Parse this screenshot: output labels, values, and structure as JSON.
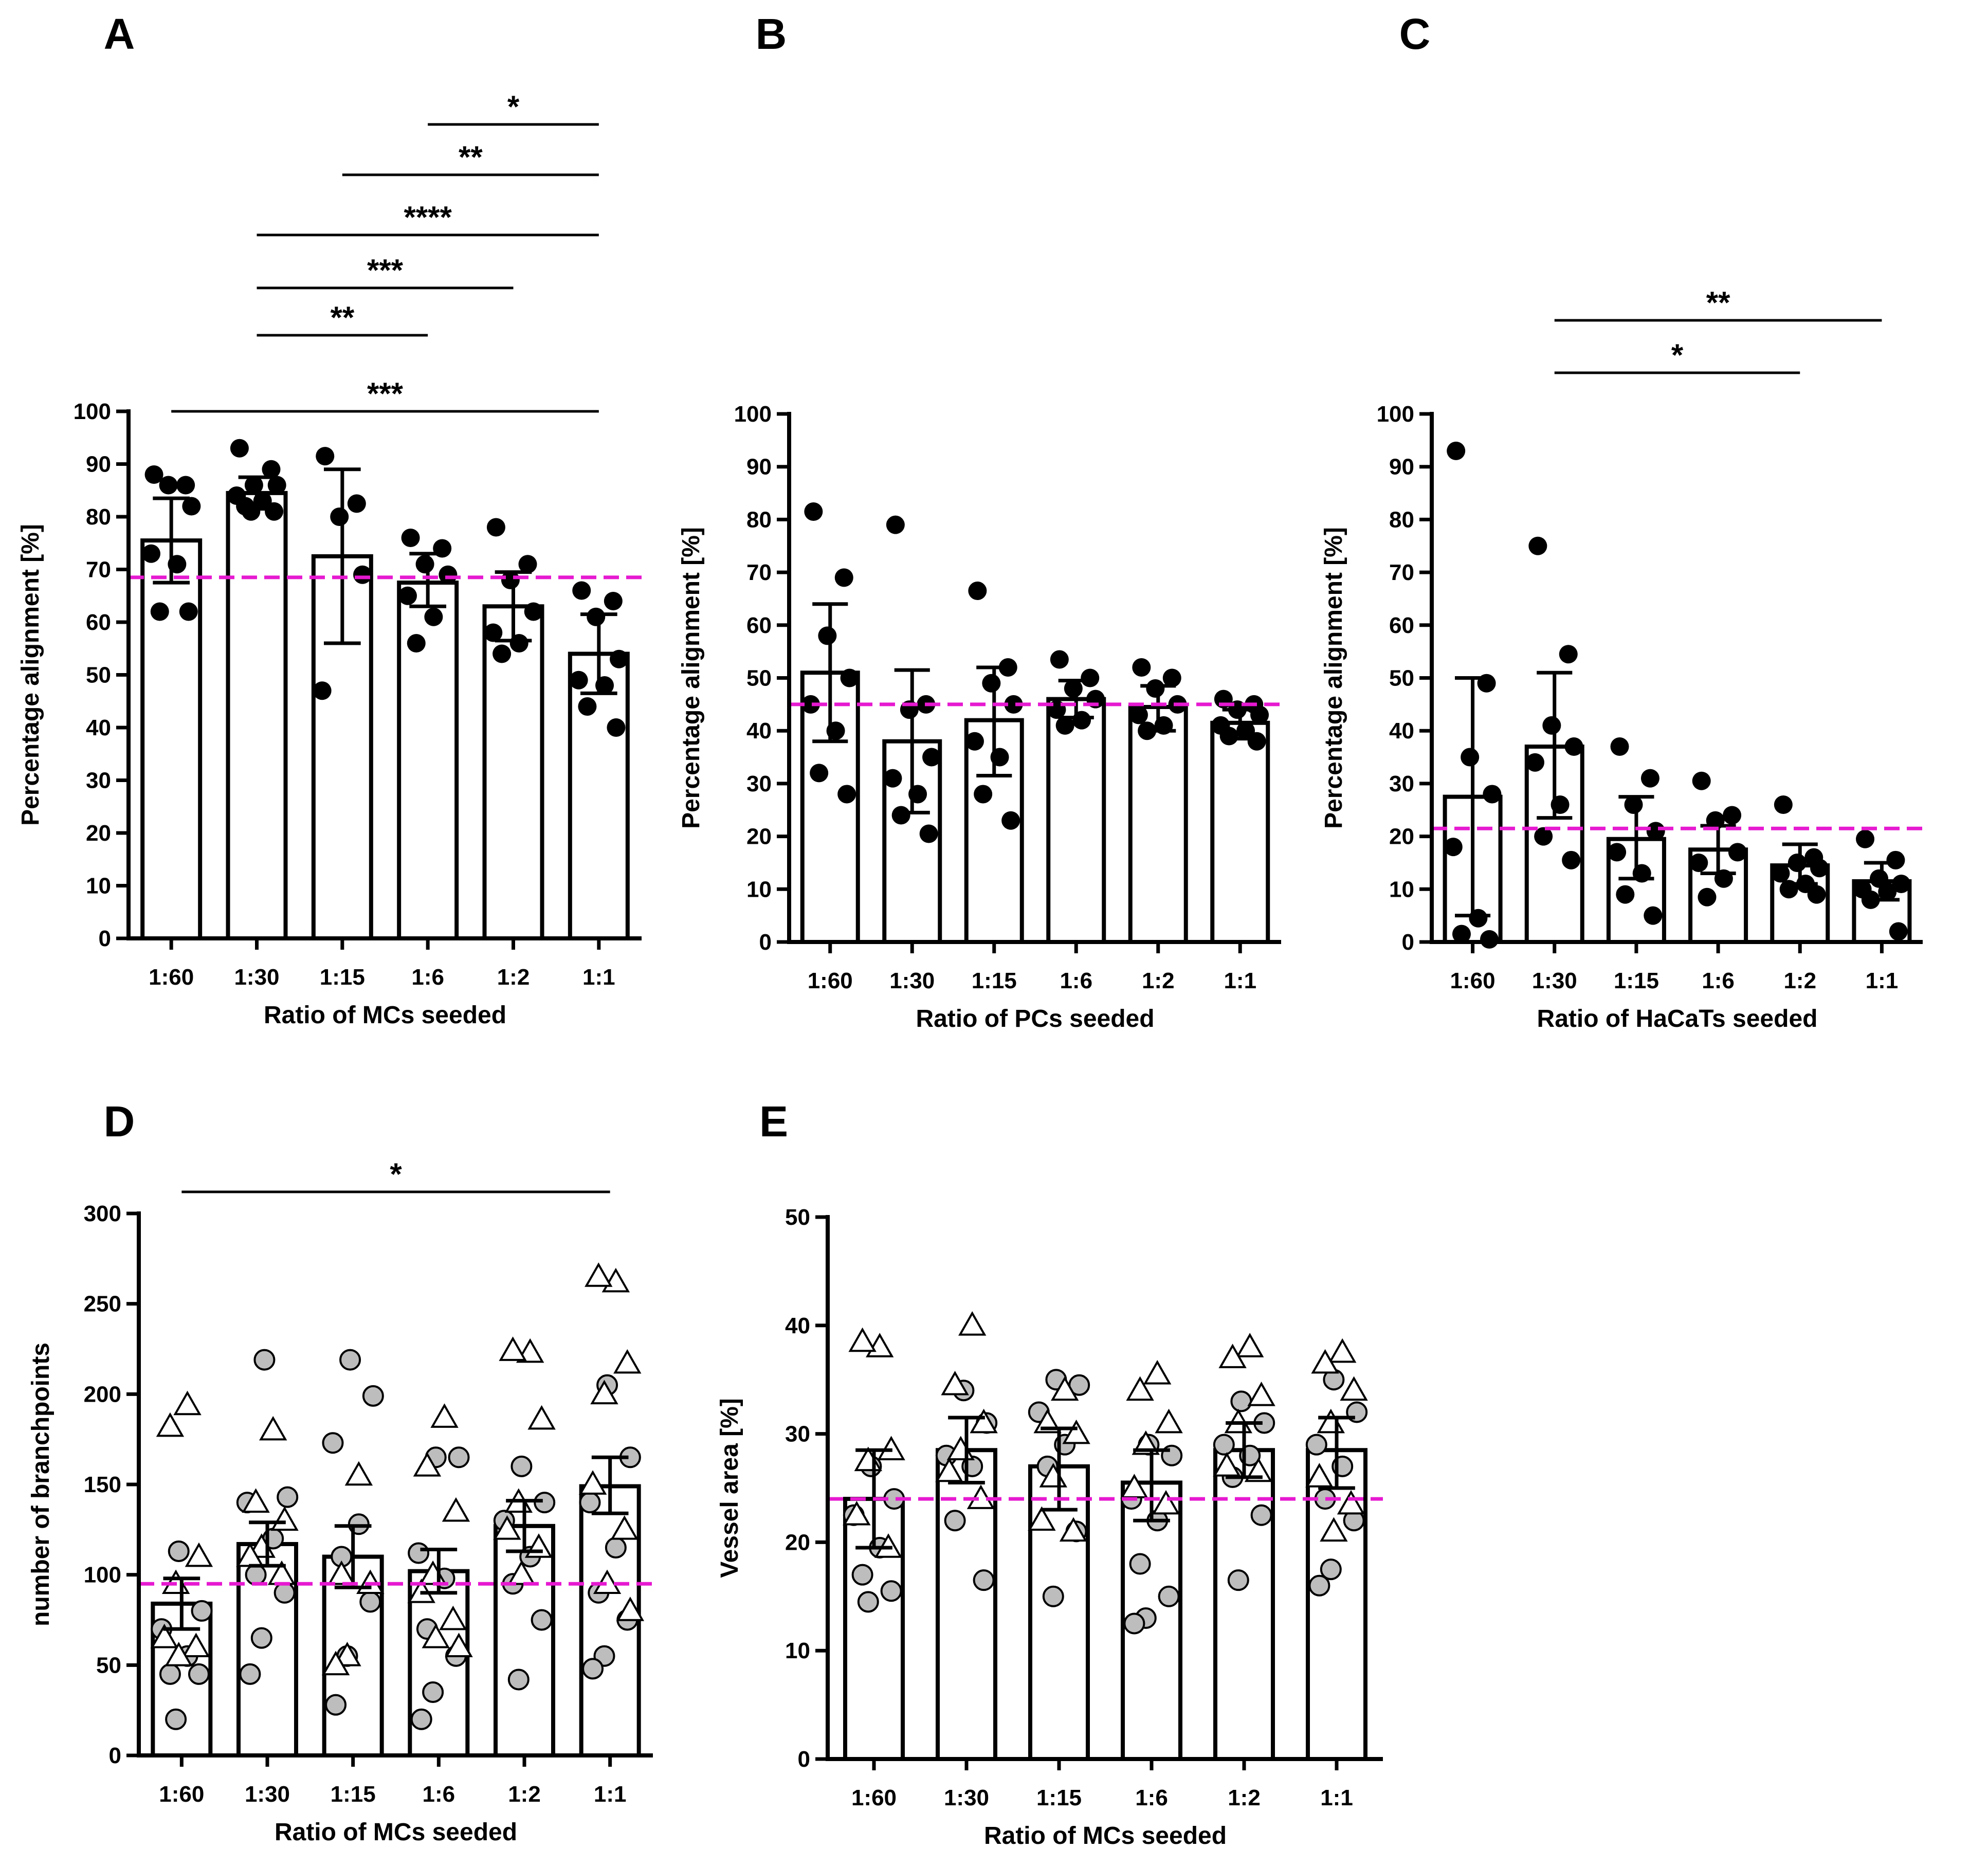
{
  "categories": [
    "1:60",
    "1:30",
    "1:15",
    "1:6",
    "1:2",
    "1:1"
  ],
  "colors": {
    "reference_line": "#E619D0",
    "bar_fill": "#FFFFFF",
    "stroke": "#000000",
    "filled_point": "#000000",
    "grey_point": "#BDBDBD"
  },
  "chart_data": [
    {
      "panel": "A",
      "type": "bar",
      "xlabel": "Ratio of MCs seeded",
      "ylabel": "Percentage alignment [%]",
      "ylim": [
        0,
        100
      ],
      "yticks": [
        0,
        10,
        20,
        30,
        40,
        50,
        60,
        70,
        80,
        90,
        100
      ],
      "categories": [
        "1:60",
        "1:30",
        "1:15",
        "1:6",
        "1:2",
        "1:1"
      ],
      "means": [
        75.5,
        84.5,
        72.5,
        67.5,
        63,
        54
      ],
      "err_low": [
        67.5,
        81.5,
        56,
        63,
        56.5,
        46.5
      ],
      "err_high": [
        83.5,
        87.5,
        89,
        73,
        69.5,
        61.5
      ],
      "reference_line": 68.5,
      "points": [
        [
          88,
          86,
          86,
          82,
          73,
          71,
          62,
          62
        ],
        [
          93,
          89,
          86,
          86,
          84,
          83,
          82,
          81,
          81
        ],
        [
          91.5,
          82.5,
          80,
          69,
          47
        ],
        [
          76,
          74,
          71,
          69,
          65,
          61,
          56
        ],
        [
          78,
          71,
          68,
          62,
          58,
          56,
          54
        ],
        [
          66,
          64,
          61,
          53,
          49,
          48,
          44,
          40
        ]
      ],
      "point_style": "filled",
      "comparisons": [
        {
          "from": "1:60",
          "to": "1:1",
          "label": "***"
        },
        {
          "from": "1:30",
          "to": "1:6",
          "label": "**"
        },
        {
          "from": "1:30",
          "to": "1:2",
          "label": "***"
        },
        {
          "from": "1:30",
          "to": "1:1",
          "label": "****"
        },
        {
          "from": "1:15",
          "to": "1:1",
          "label": "**"
        },
        {
          "from": "1:6",
          "to": "1:1",
          "label": "*"
        }
      ]
    },
    {
      "panel": "B",
      "type": "bar",
      "xlabel": "Ratio of PCs seeded",
      "ylabel": "Percentage alignment [%]",
      "ylim": [
        0,
        100
      ],
      "yticks": [
        0,
        10,
        20,
        30,
        40,
        50,
        60,
        70,
        80,
        90,
        100
      ],
      "categories": [
        "1:60",
        "1:30",
        "1:15",
        "1:6",
        "1:2",
        "1:1"
      ],
      "means": [
        51,
        38,
        42,
        46,
        44.5,
        41.5
      ],
      "err_low": [
        38,
        24.5,
        31.5,
        42.5,
        40,
        38.5
      ],
      "err_high": [
        64,
        51.5,
        52,
        49.5,
        48.5,
        44
      ],
      "reference_line": 45,
      "points": [
        [
          81.5,
          69,
          58,
          50,
          45,
          40,
          32,
          28
        ],
        [
          79,
          45,
          44,
          35,
          31,
          28,
          24,
          20.5
        ],
        [
          66.5,
          52,
          49,
          45,
          38,
          35,
          28,
          23
        ],
        [
          53.5,
          50,
          48,
          46,
          44,
          42,
          41
        ],
        [
          52,
          50,
          48,
          45,
          43,
          41,
          40
        ],
        [
          46,
          45,
          44,
          43,
          41,
          40,
          39,
          38
        ]
      ],
      "point_style": "filled",
      "comparisons": []
    },
    {
      "panel": "C",
      "type": "bar",
      "xlabel": "Ratio of HaCaTs seeded",
      "ylabel": "Percentage alignment [%]",
      "ylim": [
        0,
        100
      ],
      "yticks": [
        0,
        10,
        20,
        30,
        40,
        50,
        60,
        70,
        80,
        90,
        100
      ],
      "categories": [
        "1:60",
        "1:30",
        "1:15",
        "1:6",
        "1:2",
        "1:1"
      ],
      "means": [
        27.5,
        37,
        19.5,
        17.5,
        14.5,
        11.5
      ],
      "err_low": [
        5,
        23.5,
        12,
        13,
        11,
        8
      ],
      "err_high": [
        50,
        51,
        27.5,
        22,
        18.5,
        15
      ],
      "reference_line": 21.5,
      "points": [
        [
          93,
          49,
          35,
          28,
          18,
          4.5,
          1.5,
          0.5
        ],
        [
          75,
          54.5,
          41,
          37,
          34,
          26,
          20,
          15.5
        ],
        [
          37,
          31,
          26,
          21,
          17,
          13,
          9,
          5
        ],
        [
          30.5,
          24,
          23,
          17,
          15,
          12,
          8.5
        ],
        [
          26,
          16,
          15,
          14,
          13,
          11,
          10,
          9
        ],
        [
          19.5,
          15.5,
          12,
          11,
          10,
          9.5,
          8,
          2
        ]
      ],
      "point_style": "filled",
      "comparisons": [
        {
          "from": "1:30",
          "to": "1:2",
          "label": "*"
        },
        {
          "from": "1:30",
          "to": "1:1",
          "label": "**"
        }
      ]
    },
    {
      "panel": "D",
      "type": "bar",
      "xlabel": "Ratio of MCs seeded",
      "ylabel": "number of branchpoints",
      "ylim": [
        0,
        300
      ],
      "yticks": [
        0,
        50,
        100,
        150,
        200,
        250,
        300
      ],
      "categories": [
        "1:60",
        "1:30",
        "1:15",
        "1:6",
        "1:2",
        "1:1"
      ],
      "means": [
        84,
        117,
        110,
        102,
        127,
        149
      ],
      "err_low": [
        70,
        105,
        93,
        90,
        113,
        134
      ],
      "err_high": [
        98,
        129,
        127,
        114,
        141,
        165
      ],
      "reference_line": 95,
      "points_triangle": [
        [
          194,
          182,
          110,
          95,
          65,
          60,
          55
        ],
        [
          180,
          140,
          130,
          115,
          110,
          100
        ],
        [
          155,
          100,
          95,
          55,
          50
        ],
        [
          187,
          160,
          135,
          100,
          90,
          75,
          65,
          60
        ],
        [
          223,
          224,
          186,
          140,
          125,
          115,
          100
        ],
        [
          262,
          265,
          217,
          200,
          150,
          125,
          95,
          80
        ]
      ],
      "points_grey": [
        [
          113,
          80,
          70,
          55,
          45,
          45,
          20
        ],
        [
          219,
          143,
          140,
          120,
          100,
          90,
          65,
          45
        ],
        [
          219,
          199,
          173,
          128,
          110,
          85,
          55,
          28
        ],
        [
          165,
          165,
          112,
          98,
          70,
          55,
          35,
          20
        ],
        [
          160,
          140,
          130,
          110,
          95,
          75,
          42
        ],
        [
          205,
          165,
          140,
          115,
          90,
          75,
          55,
          48
        ]
      ],
      "point_style": "mixed",
      "comparisons": [
        {
          "from": "1:60",
          "to": "1:1",
          "label": "*"
        }
      ]
    },
    {
      "panel": "E",
      "type": "bar",
      "xlabel": "Ratio of MCs seeded",
      "ylabel": "Vessel area [%]",
      "ylim": [
        0,
        50
      ],
      "yticks": [
        0,
        10,
        20,
        30,
        40,
        50
      ],
      "categories": [
        "1:60",
        "1:30",
        "1:15",
        "1:6",
        "1:2",
        "1:1"
      ],
      "means": [
        24,
        28.5,
        27,
        25.5,
        28.5,
        28.5
      ],
      "err_low": [
        19.5,
        25.5,
        23,
        22,
        26,
        25
      ],
      "err_high": [
        28.5,
        31.5,
        30.5,
        28.5,
        31,
        31.5
      ],
      "reference_line": 24,
      "points_triangle": [
        [
          38,
          38.5,
          28.5,
          27.5,
          22.5,
          19.5
        ],
        [
          40,
          34.5,
          31,
          28.5,
          26.5,
          24
        ],
        [
          34,
          31,
          30,
          26,
          22,
          21
        ],
        [
          35.5,
          34,
          31,
          29,
          25,
          23.5
        ],
        [
          38,
          37,
          33.5,
          31,
          27,
          26.5
        ],
        [
          37.5,
          36.5,
          34,
          31,
          26,
          23.5,
          21
        ]
      ],
      "points_grey": [
        [
          27,
          24,
          22.5,
          19.5,
          17,
          15.5,
          14.5
        ],
        [
          34,
          31,
          28,
          27,
          22,
          16.5
        ],
        [
          35,
          34.5,
          32,
          29,
          27,
          21,
          15
        ],
        [
          29,
          28,
          24,
          22,
          18,
          15,
          13,
          12.5
        ],
        [
          33,
          31,
          29,
          28,
          26,
          22.5,
          16.5
        ],
        [
          35,
          32,
          29,
          27,
          24,
          22,
          17.5,
          16
        ]
      ],
      "point_style": "mixed",
      "comparisons": []
    }
  ]
}
